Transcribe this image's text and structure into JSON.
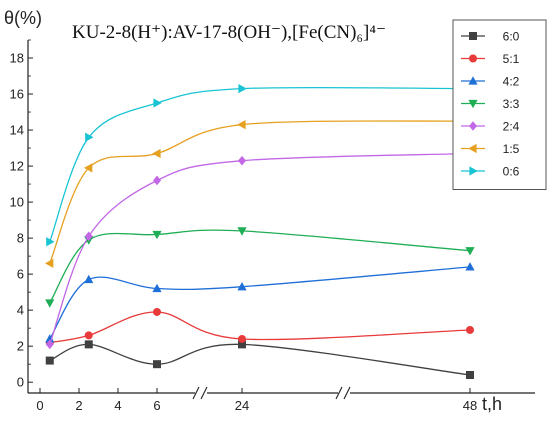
{
  "chart_data": {
    "type": "line",
    "title": "KU-2-8(H⁺):AV-17-8(OH⁻),[Fe(CN)₆]⁴⁻",
    "xlabel": "t,h",
    "ylabel": "θ(%)",
    "x_ticks": [
      "0",
      "2",
      "4",
      "6",
      "24",
      "48"
    ],
    "y_ticks": [
      "0",
      "2",
      "4",
      "6",
      "8",
      "10",
      "12",
      "14",
      "16",
      "18"
    ],
    "ylim": [
      -0.6,
      19
    ],
    "x_axis_breaks": [
      "between 6 and 24",
      "between 24 and 48"
    ],
    "legend_position": "right",
    "x": [
      0.5,
      2.5,
      6,
      24,
      48
    ],
    "series": [
      {
        "name": "6:0",
        "color": "#404040",
        "marker": "square",
        "values": [
          1.2,
          2.1,
          1.0,
          2.1,
          0.4
        ]
      },
      {
        "name": "5:1",
        "color": "#e83a3a",
        "marker": "circle",
        "values": [
          2.2,
          2.6,
          3.9,
          2.4,
          2.9
        ]
      },
      {
        "name": "4:2",
        "color": "#1f6fd8",
        "marker": "triangle-up",
        "values": [
          2.4,
          5.7,
          5.2,
          5.3,
          6.4
        ]
      },
      {
        "name": "3:3",
        "color": "#1fae55",
        "marker": "triangle-down",
        "values": [
          4.4,
          7.9,
          8.2,
          8.4,
          7.3
        ]
      },
      {
        "name": "2:4",
        "color": "#c267e6",
        "marker": "diamond",
        "values": [
          2.1,
          8.1,
          11.2,
          12.3,
          12.7
        ]
      },
      {
        "name": "1:5",
        "color": "#e6a01f",
        "marker": "triangle-left",
        "values": [
          6.6,
          11.9,
          12.7,
          14.3,
          14.5
        ]
      },
      {
        "name": "0:6",
        "color": "#18c4d4",
        "marker": "triangle-right",
        "values": [
          7.8,
          13.6,
          15.5,
          16.3,
          16.3
        ]
      }
    ]
  }
}
